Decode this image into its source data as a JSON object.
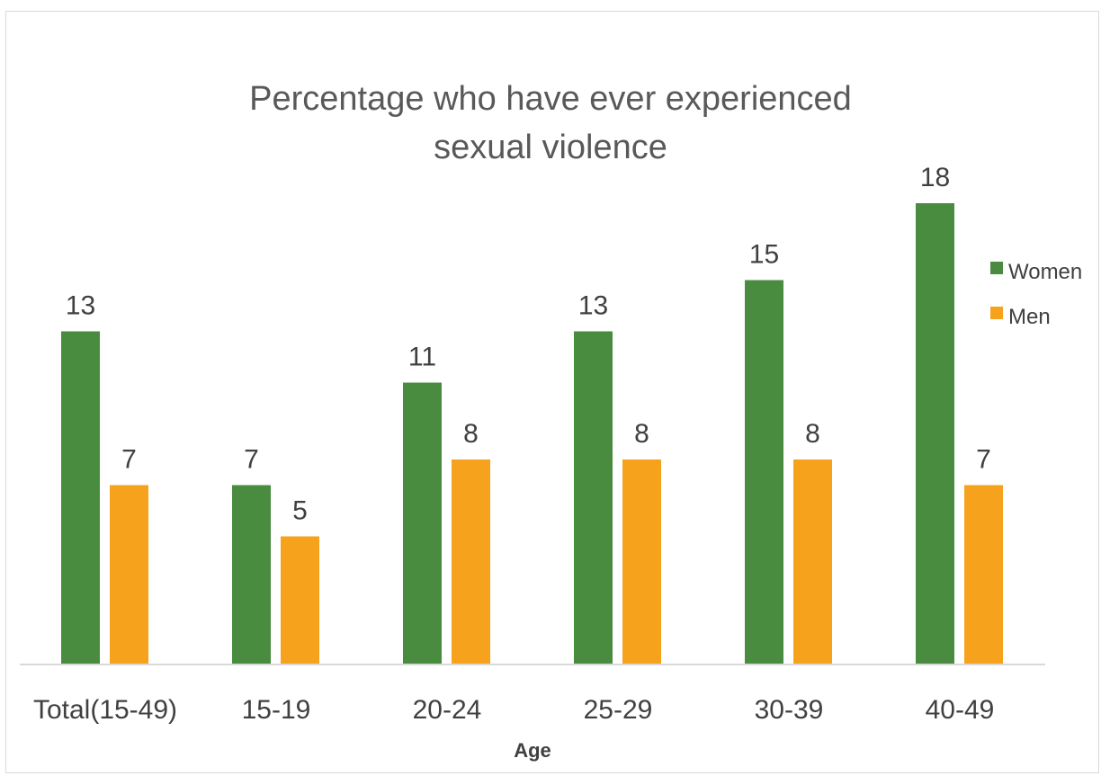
{
  "chart_data": {
    "type": "bar",
    "title_lines": [
      "Percentage who have ever experienced",
      "sexual violence"
    ],
    "xlabel": "Age",
    "ylabel": "",
    "categories": [
      "Total(15-49)",
      "15-19",
      "20-24",
      "25-29",
      "30-39",
      "40-49"
    ],
    "series": [
      {
        "name": "Women",
        "values": [
          13,
          7,
          11,
          13,
          15,
          18
        ],
        "color": "#4a8c3f"
      },
      {
        "name": "Men",
        "values": [
          7,
          5,
          8,
          8,
          8,
          7
        ],
        "color": "#f7a21d"
      }
    ],
    "ylim": [
      0,
      18
    ],
    "grid": false,
    "legend_position": "right",
    "data_labels": true,
    "axis_line_color": "#d9d9d9"
  }
}
